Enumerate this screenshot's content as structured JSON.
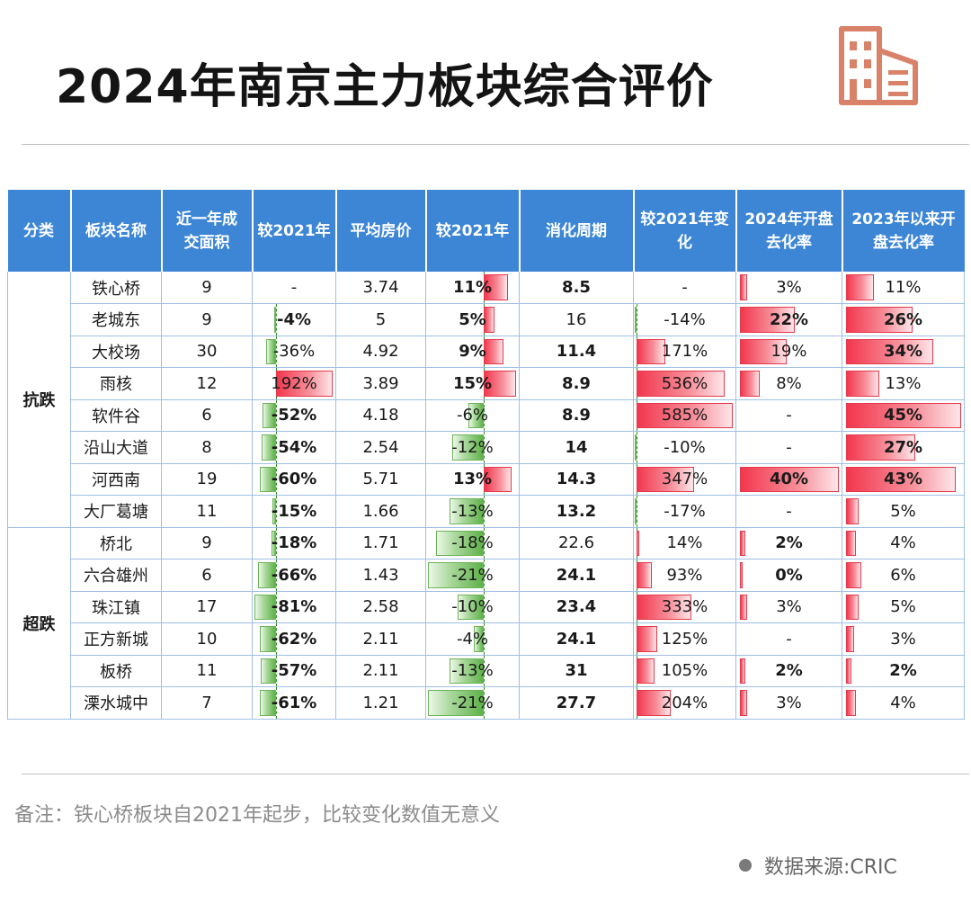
{
  "title": "2024年南京主力板块综合评价",
  "colors": {
    "header_bg": "#3d86d6",
    "positive_bar": "#f2374e",
    "negative_bar": "#5fb14a",
    "icon": "#d9826a"
  },
  "icon": "building-icon",
  "headers": [
    "分类",
    "板块名称",
    "近一年成\n交面积",
    "较2021年",
    "平均房价",
    "较2021年",
    "消化周期",
    "较2021年变\n化",
    "2024年开盘\n去化率",
    "2023年以来开\n盘去化率"
  ],
  "groups": [
    {
      "label": "抗跌",
      "rows": 8
    },
    {
      "label": "超跌",
      "rows": 6
    }
  ],
  "rows": [
    {
      "name": "铁心桥",
      "area": "9",
      "area_chg": "-",
      "price": "3.74",
      "price_chg": "11%",
      "cycle": "8.5",
      "cycle_chg": "-",
      "rate2024": "3%",
      "rate2023": "11%"
    },
    {
      "name": "老城东",
      "area": "9",
      "area_chg": "-4%",
      "price": "5",
      "price_chg": "5%",
      "cycle": "16",
      "cycle_chg": "-14%",
      "rate2024": "22%",
      "rate2023": "26%"
    },
    {
      "name": "大校场",
      "area": "30",
      "area_chg": "-36%",
      "price": "4.92",
      "price_chg": "9%",
      "cycle": "11.4",
      "cycle_chg": "171%",
      "rate2024": "19%",
      "rate2023": "34%"
    },
    {
      "name": "雨核",
      "area": "12",
      "area_chg": "192%",
      "price": "3.89",
      "price_chg": "15%",
      "cycle": "8.9",
      "cycle_chg": "536%",
      "rate2024": "8%",
      "rate2023": "13%"
    },
    {
      "name": "软件谷",
      "area": "6",
      "area_chg": "-52%",
      "price": "4.18",
      "price_chg": "-6%",
      "cycle": "8.9",
      "cycle_chg": "585%",
      "rate2024": "-",
      "rate2023": "45%"
    },
    {
      "name": "沿山大道",
      "area": "8",
      "area_chg": "-54%",
      "price": "2.54",
      "price_chg": "-12%",
      "cycle": "14",
      "cycle_chg": "-10%",
      "rate2024": "-",
      "rate2023": "27%"
    },
    {
      "name": "河西南",
      "area": "19",
      "area_chg": "-60%",
      "price": "5.71",
      "price_chg": "13%",
      "cycle": "14.3",
      "cycle_chg": "347%",
      "rate2024": "40%",
      "rate2023": "43%"
    },
    {
      "name": "大厂葛塘",
      "area": "11",
      "area_chg": "-15%",
      "price": "1.66",
      "price_chg": "-13%",
      "cycle": "13.2",
      "cycle_chg": "-17%",
      "rate2024": "-",
      "rate2023": "5%"
    },
    {
      "name": "桥北",
      "area": "9",
      "area_chg": "-18%",
      "price": "1.71",
      "price_chg": "-18%",
      "cycle": "22.6",
      "cycle_chg": "14%",
      "rate2024": "2%",
      "rate2023": "4%"
    },
    {
      "name": "六合雄州",
      "area": "6",
      "area_chg": "-66%",
      "price": "1.43",
      "price_chg": "-21%",
      "cycle": "24.1",
      "cycle_chg": "93%",
      "rate2024": "0%",
      "rate2023": "6%"
    },
    {
      "name": "珠江镇",
      "area": "17",
      "area_chg": "-81%",
      "price": "2.58",
      "price_chg": "-10%",
      "cycle": "23.4",
      "cycle_chg": "333%",
      "rate2024": "3%",
      "rate2023": "5%"
    },
    {
      "name": "正方新城",
      "area": "10",
      "area_chg": "-62%",
      "price": "2.11",
      "price_chg": "-4%",
      "cycle": "24.1",
      "cycle_chg": "125%",
      "rate2024": "-",
      "rate2023": "3%"
    },
    {
      "name": "板桥",
      "area": "11",
      "area_chg": "-57%",
      "price": "2.11",
      "price_chg": "-13%",
      "cycle": "31",
      "cycle_chg": "105%",
      "rate2024": "2%",
      "rate2023": "2%"
    },
    {
      "name": "溧水城中",
      "area": "7",
      "area_chg": "-61%",
      "price": "1.21",
      "price_chg": "-21%",
      "cycle": "27.7",
      "cycle_chg": "204%",
      "rate2024": "3%",
      "rate2023": "4%"
    }
  ],
  "bold_cells": {
    "area_chg": [
      1,
      4,
      5,
      6,
      7,
      8,
      9,
      10,
      11,
      12,
      13
    ],
    "price_chg": [
      0,
      1,
      2,
      3,
      6
    ],
    "cycle": [
      0,
      2,
      3,
      4,
      5,
      6,
      7,
      9,
      10,
      11,
      12,
      13
    ],
    "rate2024": [
      1,
      6,
      8,
      9,
      12
    ],
    "rate2023": [
      1,
      2,
      4,
      5,
      6,
      12
    ]
  },
  "note": "备注：铁心桥板块自2021年起步，比较变化数值无意义",
  "source": "数据来源:CRIC"
}
